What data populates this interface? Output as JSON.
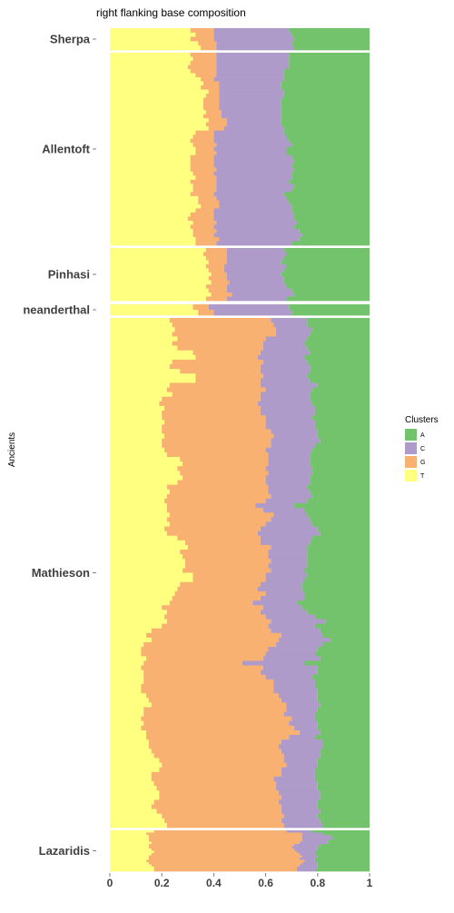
{
  "chart_data": {
    "type": "bar",
    "orientation": "horizontal",
    "stacking": "fill",
    "title": "right flanking base composition",
    "xlabel": "",
    "ylabel": "Ancients",
    "xlim": [
      0,
      1
    ],
    "x_ticks": [
      0,
      0.2,
      0.4,
      0.6,
      0.8,
      1
    ],
    "x_tick_labels": [
      "0",
      "0.2",
      "0.4",
      "0.6",
      "0.8",
      "1"
    ],
    "grid": false,
    "legend": {
      "title": "Clusters",
      "position": "right",
      "entries": [
        {
          "key": "A",
          "label": "A",
          "color": "#72c36b"
        },
        {
          "key": "C",
          "label": "C",
          "color": "#af9bca"
        },
        {
          "key": "G",
          "label": "G",
          "color": "#f9b172"
        },
        {
          "key": "T",
          "label": "T",
          "color": "#ffff80"
        }
      ]
    },
    "groups": [
      {
        "name": "Sherpa",
        "rows": [
          [
            0.31,
            0.4,
            0.69
          ],
          [
            0.33,
            0.4,
            0.7
          ],
          [
            0.31,
            0.4,
            0.71
          ],
          [
            0.34,
            0.41,
            0.7
          ],
          [
            0.35,
            0.41,
            0.71
          ]
        ]
      },
      {
        "name": "Allentoft",
        "rows": [
          [
            0.31,
            0.41,
            0.69
          ],
          [
            0.32,
            0.41,
            0.69
          ],
          [
            0.31,
            0.41,
            0.69
          ],
          [
            0.3,
            0.41,
            0.69
          ],
          [
            0.31,
            0.41,
            0.67
          ],
          [
            0.33,
            0.41,
            0.67
          ],
          [
            0.35,
            0.4,
            0.67
          ],
          [
            0.36,
            0.42,
            0.66
          ],
          [
            0.35,
            0.42,
            0.66
          ],
          [
            0.38,
            0.42,
            0.67
          ],
          [
            0.37,
            0.42,
            0.67
          ],
          [
            0.36,
            0.42,
            0.66
          ],
          [
            0.36,
            0.42,
            0.66
          ],
          [
            0.36,
            0.42,
            0.66
          ],
          [
            0.37,
            0.43,
            0.66
          ],
          [
            0.36,
            0.43,
            0.66
          ],
          [
            0.38,
            0.45,
            0.66
          ],
          [
            0.37,
            0.45,
            0.66
          ],
          [
            0.38,
            0.44,
            0.67
          ],
          [
            0.33,
            0.4,
            0.67
          ],
          [
            0.32,
            0.4,
            0.68
          ],
          [
            0.31,
            0.4,
            0.69
          ],
          [
            0.32,
            0.41,
            0.7
          ],
          [
            0.33,
            0.4,
            0.68
          ],
          [
            0.33,
            0.41,
            0.68
          ],
          [
            0.31,
            0.4,
            0.7
          ],
          [
            0.31,
            0.4,
            0.71
          ],
          [
            0.31,
            0.4,
            0.7
          ],
          [
            0.31,
            0.41,
            0.71
          ],
          [
            0.32,
            0.4,
            0.7
          ],
          [
            0.33,
            0.41,
            0.7
          ],
          [
            0.31,
            0.41,
            0.69
          ],
          [
            0.32,
            0.41,
            0.71
          ],
          [
            0.32,
            0.41,
            0.7
          ],
          [
            0.31,
            0.4,
            0.67
          ],
          [
            0.34,
            0.41,
            0.68
          ],
          [
            0.34,
            0.42,
            0.69
          ],
          [
            0.35,
            0.42,
            0.7
          ],
          [
            0.33,
            0.4,
            0.7
          ],
          [
            0.31,
            0.4,
            0.71
          ],
          [
            0.3,
            0.4,
            0.71
          ],
          [
            0.32,
            0.41,
            0.72
          ],
          [
            0.31,
            0.4,
            0.71
          ],
          [
            0.32,
            0.41,
            0.73
          ],
          [
            0.32,
            0.4,
            0.74
          ],
          [
            0.33,
            0.42,
            0.73
          ],
          [
            0.33,
            0.41,
            0.7
          ]
        ]
      },
      {
        "name": "Pinhasi",
        "rows": [
          [
            0.37,
            0.45,
            0.67
          ],
          [
            0.36,
            0.45,
            0.68
          ],
          [
            0.37,
            0.45,
            0.67
          ],
          [
            0.38,
            0.45,
            0.66
          ],
          [
            0.37,
            0.44,
            0.68
          ],
          [
            0.38,
            0.44,
            0.67
          ],
          [
            0.39,
            0.45,
            0.66
          ],
          [
            0.38,
            0.45,
            0.67
          ],
          [
            0.39,
            0.46,
            0.67
          ],
          [
            0.37,
            0.45,
            0.68
          ],
          [
            0.38,
            0.45,
            0.7
          ],
          [
            0.39,
            0.47,
            0.71
          ],
          [
            0.37,
            0.45,
            0.68
          ]
        ]
      },
      {
        "name": "neanderthal",
        "rows": [
          [
            0.32,
            0.38,
            0.69
          ],
          [
            0.34,
            0.4,
            0.7
          ]
        ]
      },
      {
        "name": "Mathieson",
        "rows": [
          [
            0.23,
            0.62,
            0.76
          ],
          [
            0.24,
            0.63,
            0.76
          ],
          [
            0.25,
            0.64,
            0.78
          ],
          [
            0.24,
            0.64,
            0.77
          ],
          [
            0.26,
            0.6,
            0.76
          ],
          [
            0.24,
            0.59,
            0.75
          ],
          [
            0.26,
            0.59,
            0.76
          ],
          [
            0.32,
            0.58,
            0.77
          ],
          [
            0.33,
            0.57,
            0.75
          ],
          [
            0.24,
            0.59,
            0.76
          ],
          [
            0.23,
            0.58,
            0.77
          ],
          [
            0.27,
            0.58,
            0.77
          ],
          [
            0.33,
            0.59,
            0.76
          ],
          [
            0.33,
            0.58,
            0.77
          ],
          [
            0.23,
            0.58,
            0.8
          ],
          [
            0.22,
            0.6,
            0.78
          ],
          [
            0.24,
            0.58,
            0.77
          ],
          [
            0.2,
            0.58,
            0.77
          ],
          [
            0.19,
            0.57,
            0.78
          ],
          [
            0.21,
            0.58,
            0.79
          ],
          [
            0.2,
            0.58,
            0.79
          ],
          [
            0.2,
            0.6,
            0.78
          ],
          [
            0.21,
            0.6,
            0.79
          ],
          [
            0.2,
            0.6,
            0.79
          ],
          [
            0.2,
            0.62,
            0.8
          ],
          [
            0.21,
            0.63,
            0.8
          ],
          [
            0.2,
            0.62,
            0.81
          ],
          [
            0.2,
            0.62,
            0.79
          ],
          [
            0.21,
            0.6,
            0.78
          ],
          [
            0.22,
            0.61,
            0.77
          ],
          [
            0.27,
            0.61,
            0.77
          ],
          [
            0.28,
            0.61,
            0.77
          ],
          [
            0.26,
            0.6,
            0.78
          ],
          [
            0.27,
            0.61,
            0.78
          ],
          [
            0.28,
            0.6,
            0.77
          ],
          [
            0.26,
            0.6,
            0.77
          ],
          [
            0.22,
            0.61,
            0.76
          ],
          [
            0.23,
            0.61,
            0.77
          ],
          [
            0.22,
            0.62,
            0.78
          ],
          [
            0.21,
            0.6,
            0.76
          ],
          [
            0.22,
            0.56,
            0.71
          ],
          [
            0.22,
            0.59,
            0.75
          ],
          [
            0.23,
            0.63,
            0.76
          ],
          [
            0.22,
            0.62,
            0.77
          ],
          [
            0.23,
            0.6,
            0.78
          ],
          [
            0.21,
            0.58,
            0.8
          ],
          [
            0.22,
            0.57,
            0.81
          ],
          [
            0.26,
            0.58,
            0.78
          ],
          [
            0.29,
            0.58,
            0.77
          ],
          [
            0.3,
            0.62,
            0.76
          ],
          [
            0.27,
            0.61,
            0.76
          ],
          [
            0.28,
            0.61,
            0.76
          ],
          [
            0.29,
            0.62,
            0.76
          ],
          [
            0.29,
            0.61,
            0.76
          ],
          [
            0.28,
            0.62,
            0.75
          ],
          [
            0.32,
            0.6,
            0.76
          ],
          [
            0.32,
            0.6,
            0.75
          ],
          [
            0.27,
            0.58,
            0.74
          ],
          [
            0.26,
            0.57,
            0.74
          ],
          [
            0.25,
            0.6,
            0.75
          ],
          [
            0.24,
            0.58,
            0.75
          ],
          [
            0.23,
            0.55,
            0.72
          ],
          [
            0.2,
            0.59,
            0.74
          ],
          [
            0.22,
            0.58,
            0.76
          ],
          [
            0.21,
            0.6,
            0.79
          ],
          [
            0.22,
            0.62,
            0.83
          ],
          [
            0.2,
            0.61,
            0.79
          ],
          [
            0.16,
            0.62,
            0.81
          ],
          [
            0.14,
            0.66,
            0.82
          ],
          [
            0.16,
            0.65,
            0.85
          ],
          [
            0.13,
            0.64,
            0.82
          ],
          [
            0.12,
            0.61,
            0.8
          ],
          [
            0.12,
            0.6,
            0.79
          ],
          [
            0.14,
            0.59,
            0.81
          ],
          [
            0.13,
            0.51,
            0.75
          ],
          [
            0.12,
            0.59,
            0.8
          ],
          [
            0.13,
            0.58,
            0.8
          ],
          [
            0.13,
            0.6,
            0.78
          ],
          [
            0.13,
            0.63,
            0.79
          ],
          [
            0.12,
            0.63,
            0.79
          ],
          [
            0.12,
            0.63,
            0.8
          ],
          [
            0.14,
            0.65,
            0.8
          ],
          [
            0.15,
            0.66,
            0.8
          ],
          [
            0.16,
            0.68,
            0.81
          ],
          [
            0.13,
            0.68,
            0.8
          ],
          [
            0.13,
            0.67,
            0.79
          ],
          [
            0.12,
            0.7,
            0.79
          ],
          [
            0.13,
            0.69,
            0.8
          ],
          [
            0.12,
            0.71,
            0.8
          ],
          [
            0.14,
            0.73,
            0.81
          ],
          [
            0.14,
            0.69,
            0.79
          ],
          [
            0.15,
            0.66,
            0.82
          ],
          [
            0.15,
            0.65,
            0.82
          ],
          [
            0.16,
            0.66,
            0.81
          ],
          [
            0.17,
            0.67,
            0.81
          ],
          [
            0.19,
            0.67,
            0.8
          ],
          [
            0.2,
            0.68,
            0.8
          ],
          [
            0.19,
            0.66,
            0.79
          ],
          [
            0.16,
            0.66,
            0.79
          ],
          [
            0.16,
            0.63,
            0.79
          ],
          [
            0.17,
            0.64,
            0.8
          ],
          [
            0.18,
            0.64,
            0.8
          ],
          [
            0.19,
            0.65,
            0.81
          ],
          [
            0.19,
            0.66,
            0.81
          ],
          [
            0.17,
            0.65,
            0.8
          ],
          [
            0.16,
            0.66,
            0.8
          ],
          [
            0.18,
            0.66,
            0.81
          ],
          [
            0.2,
            0.67,
            0.8
          ],
          [
            0.21,
            0.66,
            0.81
          ],
          [
            0.22,
            0.67,
            0.82
          ]
        ]
      },
      {
        "name": "Lazaridis",
        "rows": [
          [
            0.17,
            0.68,
            0.78
          ],
          [
            0.14,
            0.74,
            0.82
          ],
          [
            0.15,
            0.74,
            0.85
          ],
          [
            0.15,
            0.74,
            0.86
          ],
          [
            0.15,
            0.74,
            0.84
          ],
          [
            0.16,
            0.73,
            0.84
          ],
          [
            0.15,
            0.71,
            0.81
          ],
          [
            0.15,
            0.7,
            0.8
          ],
          [
            0.16,
            0.71,
            0.8
          ],
          [
            0.17,
            0.72,
            0.79
          ],
          [
            0.16,
            0.73,
            0.79
          ],
          [
            0.15,
            0.74,
            0.8
          ],
          [
            0.15,
            0.73,
            0.79
          ],
          [
            0.14,
            0.75,
            0.79
          ],
          [
            0.15,
            0.74,
            0.8
          ],
          [
            0.16,
            0.73,
            0.8
          ],
          [
            0.17,
            0.72,
            0.8
          ],
          [
            0.17,
            0.72,
            0.79
          ]
        ]
      }
    ]
  }
}
